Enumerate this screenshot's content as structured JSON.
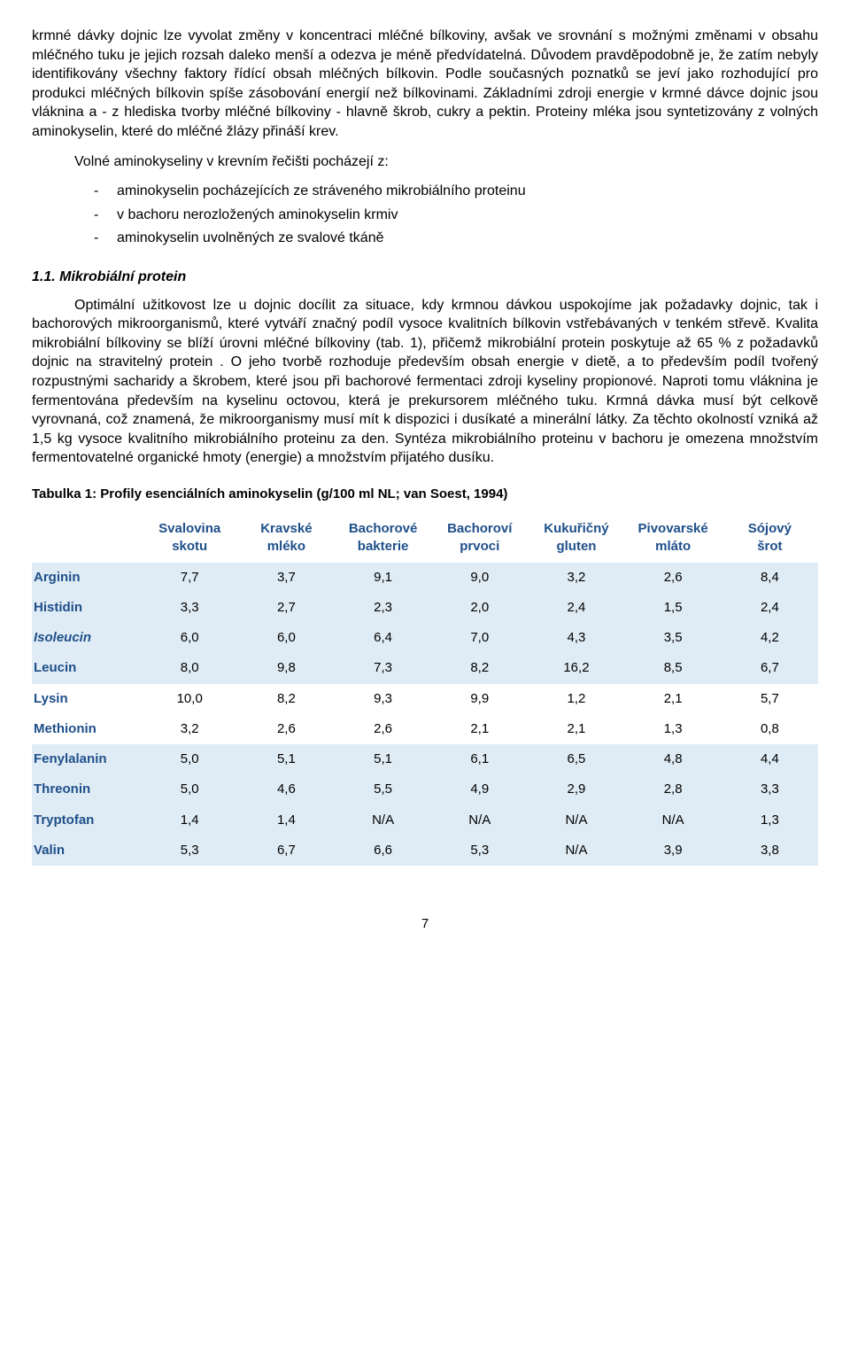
{
  "para1": "krmné dávky dojnic lze vyvolat změny v koncentraci mléčné bílkoviny, avšak ve srovnání s možnými změnami v obsahu mléčného tuku je jejich rozsah daleko menší a odezva je méně předvídatelná. Důvodem pravděpodobně je, že zatím nebyly identifikovány všechny faktory řídící obsah mléčných bílkovin. Podle současných poznatků se jeví jako rozhodující pro produkci mléčných bílkovin spíše zásobování energií než bílkovinami. Základními zdroji energie v krmné dávce  dojnic jsou vláknina a - z hlediska tvorby mléčné bílkoviny - hlavně škrob, cukry a pektin. Proteiny mléka jsou syntetizovány z volných aminokyselin, které do mléčné žlázy přináší krev.",
  "intro": "Volné aminokyseliny v krevním řečišti pocházejí z:",
  "bullets": {
    "a": "aminokyselin pocházejících ze stráveného mikrobiálního  proteinu",
    "b": "v bachoru nerozložených aminokyselin krmiv",
    "c": "aminokyselin uvolněných ze svalové tkáně"
  },
  "sectionTitle": "1.1. Mikrobiální protein",
  "para2a": "Optimální užitkovost lze u dojnic docílit za situace, kdy krmnou dávkou uspokojíme jak požadavky dojnic, tak i bachorových mikroorganismů, které vytváří značný podíl vysoce kvalitních bílkovin vstřebávaných v tenkém střevě. Kvalita mikrobiální bílkoviny se blíží úrovni mléčné bílkoviny (tab. 1), přičemž mikrobiální protein poskytuje až 65 % z požadavků dojnic na stravitelný protein . O jeho tvorbě rozhoduje především obsah energie v dietě, a to především podíl tvořený rozpustnými sacharidy a škrobem, které jsou při bachorové fermentaci zdroji kyseliny propionové. Naproti tomu vláknina je fermentována především na kyselinu octovou, která je prekursorem mléčného tuku.  Krmná dávka musí být celkově vyrovnaná, což znamená, že mikroorganismy musí mít k dispozici i dusíkaté a minerální látky. Za těchto okolností vzniká až 1,5 kg vysoce kvalitního mikrobiálního proteinu za den. Syntéza mikrobiálního proteinu v bachoru je omezena množstvím fermentovatelné organické hmoty (energie) a množstvím přijatého dusíku.",
  "tableTitle": "Tabulka 1: Profily esenciálních aminokyselin (g/100 ml NL; van Soest, 1994)",
  "columns": {
    "c1a": "Svalovina",
    "c1b": "skotu",
    "c2a": "Kravské",
    "c2b": "mléko",
    "c3a": "Bachorové",
    "c3b": "bakterie",
    "c4a": "Bachoroví",
    "c4b": "prvoci",
    "c5a": "Kukuřičný",
    "c5b": "gluten",
    "c6a": "Pivovarské",
    "c6b": "mláto",
    "c7a": "Sójový",
    "c7b": "šrot"
  },
  "rows": [
    {
      "n": "Arginin",
      "v": [
        "7,7",
        "3,7",
        "9,1",
        "9,0",
        "3,2",
        "2,6",
        "8,4"
      ]
    },
    {
      "n": "Histidin",
      "v": [
        "3,3",
        "2,7",
        "2,3",
        "2,0",
        "2,4",
        "1,5",
        "2,4"
      ]
    },
    {
      "n": "Isoleucin",
      "v": [
        "6,0",
        "6,0",
        "6,4",
        "7,0",
        "4,3",
        "3,5",
        "4,2"
      ]
    },
    {
      "n": "Leucin",
      "v": [
        "8,0",
        "9,8",
        "7,3",
        "8,2",
        "16,2",
        "8,5",
        "6,7"
      ]
    },
    {
      "n": "Lysin",
      "v": [
        "10,0",
        "8,2",
        "9,3",
        "9,9",
        "1,2",
        "2,1",
        "5,7"
      ]
    },
    {
      "n": "Methionin",
      "v": [
        "3,2",
        "2,6",
        "2,6",
        "2,1",
        "2,1",
        "1,3",
        "0,8"
      ]
    },
    {
      "n": "Fenylalanin",
      "v": [
        "5,0",
        "5,1",
        "5,1",
        "6,1",
        "6,5",
        "4,8",
        "4,4"
      ]
    },
    {
      "n": "Threonin",
      "v": [
        "5,0",
        "4,6",
        "5,5",
        "4,9",
        "2,9",
        "2,8",
        "3,3"
      ]
    },
    {
      "n": "Tryptofan",
      "v": [
        "1,4",
        "1,4",
        "N/A",
        "N/A",
        "N/A",
        "N/A",
        "1,3"
      ]
    },
    {
      "n": "Valin",
      "v": [
        "5,3",
        "6,7",
        "6,6",
        "5,3",
        "N/A",
        "3,9",
        "3,8"
      ]
    }
  ],
  "pagenum": "7",
  "colors": {
    "headerText": "#1e4f8a",
    "stripe": "#e0ecf5"
  }
}
